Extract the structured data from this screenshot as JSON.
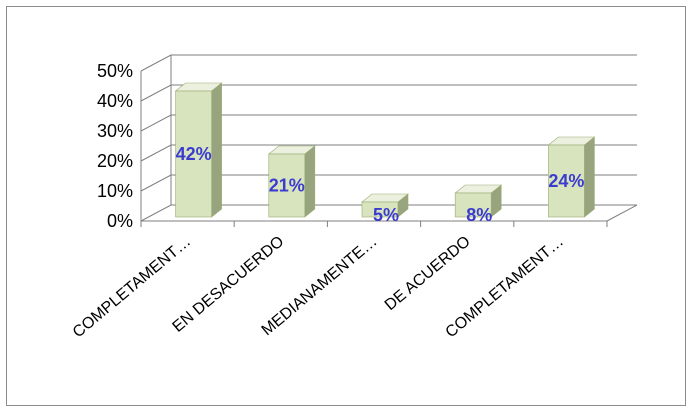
{
  "colors": {
    "bar_front": "#d7e4bd",
    "bar_top": "#ebf1de",
    "bar_side": "#98a47d",
    "bar_edge": "#9bab73",
    "data_label": "#3b3bd0",
    "grid": "#7f7f7f"
  },
  "chart_data": {
    "type": "bar",
    "style": "3d-column",
    "categories": [
      "COMPLETAMENT…",
      "EN DESACUERDO",
      "MEDIANAMENTE…",
      "DE ACUERDO",
      "COMPLETAMENT…"
    ],
    "values": [
      42,
      21,
      5,
      8,
      24
    ],
    "data_labels": [
      "42%",
      "21%",
      "5%",
      "8%",
      "24%"
    ],
    "ylim": [
      0,
      50
    ],
    "yticks": [
      0,
      10,
      20,
      30,
      40,
      50
    ],
    "ytick_labels": [
      "0%",
      "10%",
      "20%",
      "30%",
      "40%",
      "50%"
    ],
    "title": "",
    "xlabel": "",
    "ylabel": "",
    "grid": true,
    "legend": "none"
  }
}
